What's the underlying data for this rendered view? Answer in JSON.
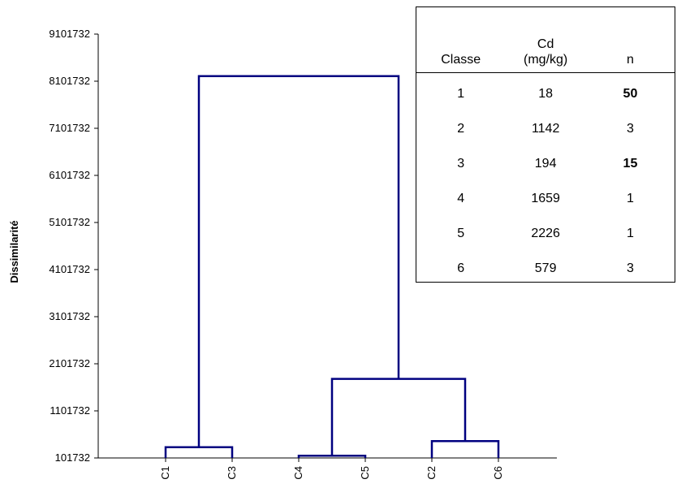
{
  "chart_data": {
    "type": "dendrogram",
    "ylabel": "Dissimilarité",
    "xlabel": "",
    "ylim": [
      101732,
      9101732
    ],
    "yticks": [
      "101732",
      "1101732",
      "2101732",
      "3101732",
      "4101732",
      "5101732",
      "6101732",
      "7101732",
      "8101732",
      "9101732"
    ],
    "ytick_values": [
      101732,
      1101732,
      2101732,
      3101732,
      4101732,
      5101732,
      6101732,
      7101732,
      8101732,
      9101732
    ],
    "leaves": [
      "C1",
      "C3",
      "C4",
      "C5",
      "C2",
      "C6"
    ],
    "merges": [
      {
        "id": "m1",
        "left": "C1",
        "right": "C3",
        "height": 330000
      },
      {
        "id": "m2",
        "left": "C4",
        "right": "C5",
        "height": 150000
      },
      {
        "id": "m3",
        "left": "C2",
        "right": "C6",
        "height": 460000
      },
      {
        "id": "m4",
        "left": "m2",
        "right": "m3",
        "height": 1780000
      },
      {
        "id": "m5",
        "left": "m1",
        "right": "m4",
        "height": 8210000
      }
    ],
    "link_color": "#000080"
  },
  "table": {
    "headers": {
      "classe": "Classe",
      "cd_line1": "Cd",
      "cd_line2": "(mg/kg)",
      "n": "n"
    },
    "rows": [
      {
        "classe": "1",
        "cd": "18",
        "n": "50",
        "n_bold": true
      },
      {
        "classe": "2",
        "cd": "1142",
        "n": "3",
        "n_bold": false
      },
      {
        "classe": "3",
        "cd": "194",
        "n": "15",
        "n_bold": true
      },
      {
        "classe": "4",
        "cd": "1659",
        "n": "1",
        "n_bold": false
      },
      {
        "classe": "5",
        "cd": "2226",
        "n": "1",
        "n_bold": false
      },
      {
        "classe": "6",
        "cd": "579",
        "n": "3",
        "n_bold": false
      }
    ]
  }
}
